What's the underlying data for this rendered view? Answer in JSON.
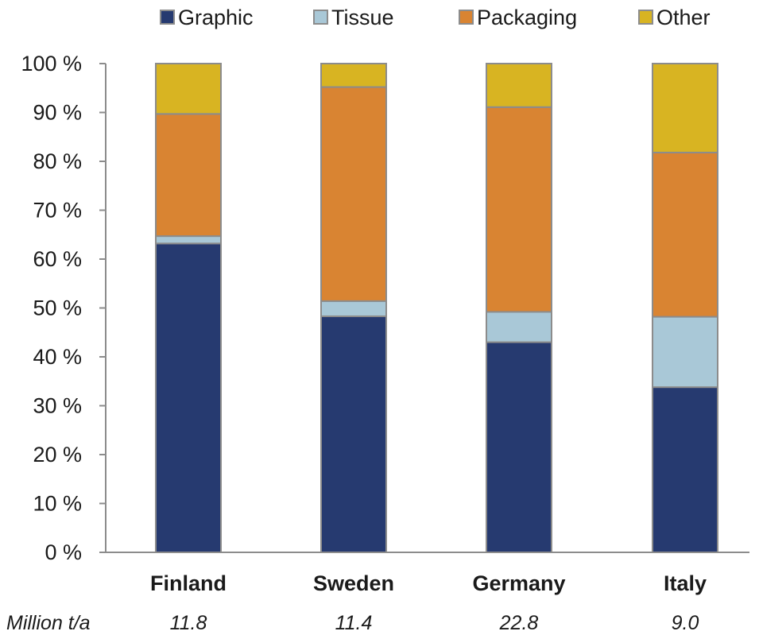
{
  "chart_data": {
    "type": "bar",
    "stacked": true,
    "categories": [
      "Finland",
      "Sweden",
      "Germany",
      "Italy"
    ],
    "series": [
      {
        "name": "Graphic",
        "color": "#263a70",
        "values": [
          63.2,
          48.3,
          43.0,
          33.8
        ]
      },
      {
        "name": "Tissue",
        "color": "#a9c8d7",
        "values": [
          1.5,
          3.1,
          6.2,
          14.4
        ]
      },
      {
        "name": "Packaging",
        "color": "#d98432",
        "values": [
          25.0,
          43.8,
          41.9,
          33.6
        ]
      },
      {
        "name": "Other",
        "color": "#d8b422",
        "values": [
          10.3,
          4.8,
          8.9,
          18.2
        ]
      }
    ],
    "ylim": [
      0,
      100
    ],
    "yticks": [
      0,
      10,
      20,
      30,
      40,
      50,
      60,
      70,
      80,
      90,
      100
    ],
    "ytick_labels": [
      "0 %",
      "10 %",
      "20 %",
      "30 %",
      "40 %",
      "50 %",
      "60 %",
      "70 %",
      "80 %",
      "90 %",
      "100 %"
    ],
    "legend_position": "top",
    "grid": false,
    "footer": {
      "label": "Million t/a",
      "values": [
        "11.8",
        "11.4",
        "22.8",
        "9.0"
      ]
    },
    "bar_edge_color": "#8c8c8c",
    "axis_color": "#8c8c8c"
  }
}
